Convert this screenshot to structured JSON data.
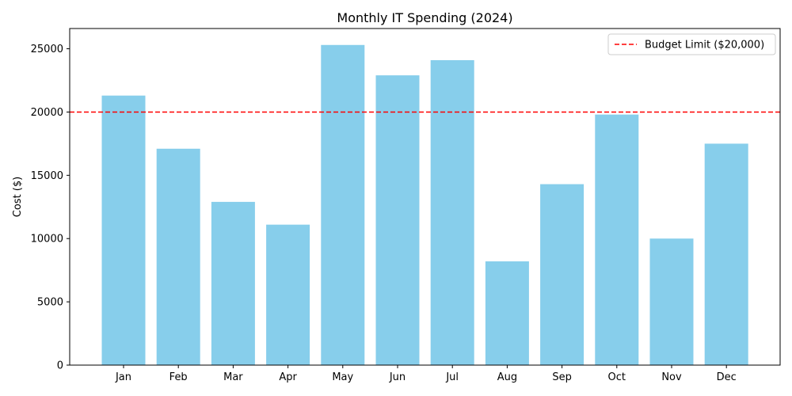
{
  "chart_data": {
    "type": "bar",
    "title": "Monthly IT Spending (2024)",
    "xlabel": "",
    "ylabel": "Cost ($)",
    "categories": [
      "Jan",
      "Feb",
      "Mar",
      "Apr",
      "May",
      "Jun",
      "Jul",
      "Aug",
      "Sep",
      "Oct",
      "Nov",
      "Dec"
    ],
    "values": [
      21300,
      17100,
      12900,
      11100,
      25300,
      22900,
      24100,
      8200,
      14300,
      19800,
      10000,
      17500
    ],
    "ylim": [
      0,
      26600
    ],
    "yticks": [
      0,
      5000,
      10000,
      15000,
      20000,
      25000
    ],
    "bar_color": "#87ceeb",
    "grid": false,
    "reference_line": {
      "value": 20000,
      "color": "#ff0000",
      "style": "dashed",
      "label": "Budget Limit ($20,000)"
    },
    "legend": {
      "position": "top-right"
    }
  }
}
